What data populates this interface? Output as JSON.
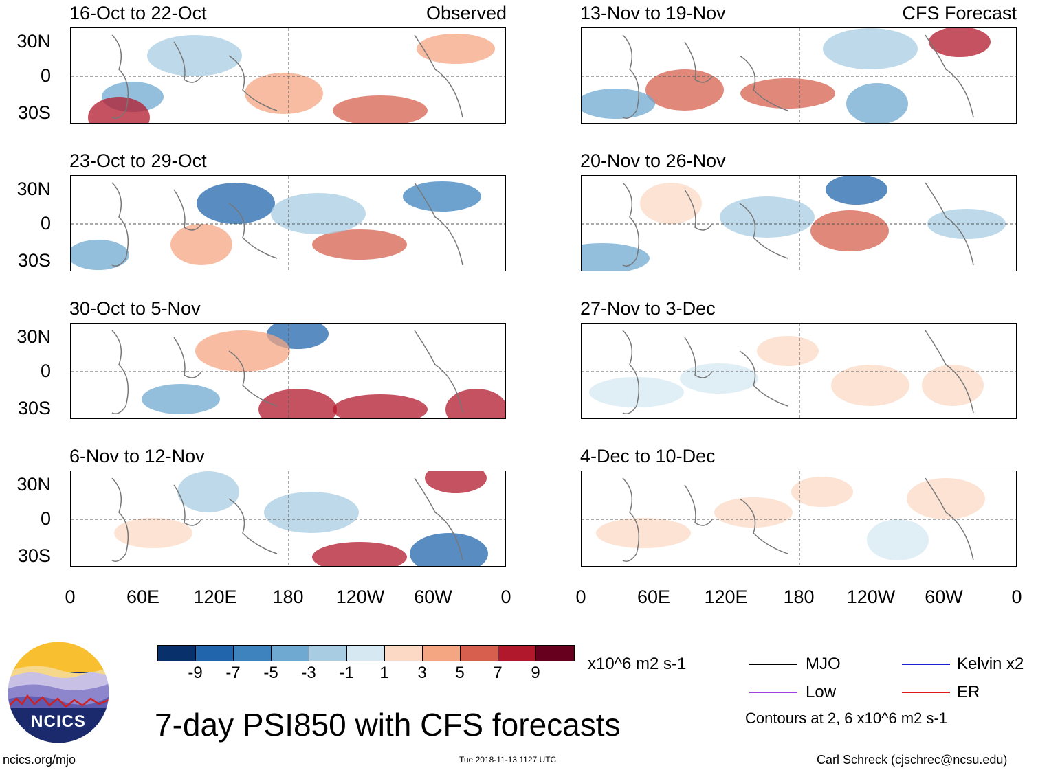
{
  "panels": {
    "observed": [
      {
        "title": "16-Oct to 22-Oct",
        "label": "Observed"
      },
      {
        "title": "23-Oct to 29-Oct",
        "label": ""
      },
      {
        "title": "30-Oct to 5-Nov",
        "label": ""
      },
      {
        "title": "6-Nov to 12-Nov",
        "label": ""
      }
    ],
    "forecast": [
      {
        "title": "13-Nov to 19-Nov",
        "label": "CFS Forecast"
      },
      {
        "title": "20-Nov to 26-Nov",
        "label": ""
      },
      {
        "title": "27-Nov to 3-Dec",
        "label": ""
      },
      {
        "title": "4-Dec to 10-Dec",
        "label": ""
      }
    ]
  },
  "axes": {
    "y_ticks": [
      "30N",
      "0",
      "30S"
    ],
    "x_ticks": [
      "0",
      "60E",
      "120E",
      "180",
      "120W",
      "60W",
      "0"
    ]
  },
  "colorbar": {
    "labels": [
      "-9",
      "-7",
      "-5",
      "-3",
      "-1",
      "1",
      "3",
      "5",
      "7",
      "9"
    ],
    "colors": [
      "#08306b",
      "#2166ac",
      "#3e83bd",
      "#6fa9d2",
      "#a8cde3",
      "#d6e8f2",
      "#ffffff",
      "#fbd9c4",
      "#f4a582",
      "#d6604d",
      "#b2182b",
      "#67001f"
    ],
    "units": "x10^6 m2 s-1"
  },
  "legend": {
    "mjo": "MJO",
    "kelvin": "Kelvin x2",
    "low": "Low",
    "er": "ER",
    "contours_note": "Contours at 2, 6 x10^6 m2 s-1",
    "colors": {
      "mjo": "#000000",
      "kelvin": "#1f1fd6",
      "low": "#a040e0",
      "er": "#e01a1a"
    }
  },
  "title": "7-day PSI850 with CFS forecasts",
  "logo": {
    "text": "NCICS"
  },
  "footer": {
    "url": "ncics.org/mjo",
    "timestamp": "Tue 2018-11-13 1127 UTC",
    "credit": "Carl Schreck (cjschrec@ncsu.edu)"
  }
}
